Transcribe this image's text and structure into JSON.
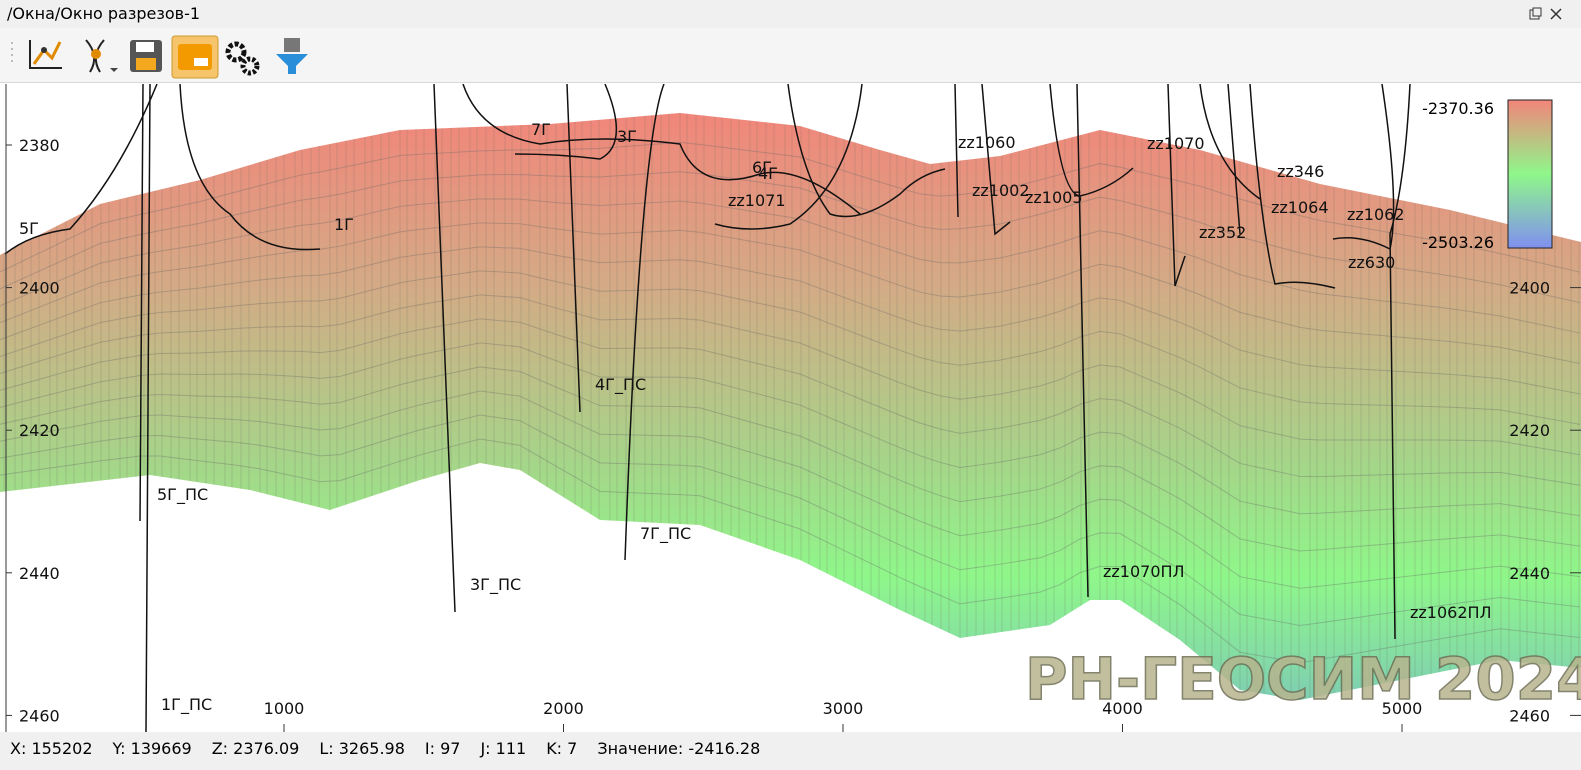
{
  "window": {
    "title": "/Окна/Окно разрезов-1"
  },
  "section": {
    "yticks_left": [
      2380,
      2400,
      2420,
      2440,
      2460
    ],
    "yticks_right": [
      2400,
      2420,
      2440,
      2460
    ],
    "xticks": [
      1000,
      2000,
      3000,
      4000,
      5000
    ],
    "colorbar": {
      "max_label": "-2370.36",
      "min_label": "-2503.26"
    },
    "wells": [
      "5Г",
      "1Г",
      "7Г",
      "3Г",
      "6Г",
      "4Г",
      "zz1071",
      "zz1060",
      "zz1002",
      "zz1005",
      "zz1070",
      "zz346",
      "zz1064",
      "zz352",
      "zz1062",
      "zz630",
      "5Г_ПС",
      "4Г_ПС",
      "7Г_ПС",
      "3Г_ПС",
      "1Г_ПС",
      "zz1070ПЛ",
      "zz1062ПЛ"
    ],
    "watermark": "РН-ГЕОСИМ 2024"
  },
  "status": {
    "items": [
      "X: 155202",
      "Y: 139669",
      "Z: 2376.09",
      "L: 3265.98",
      "I: 97",
      "J: 111",
      "K: 7",
      "Значение: -2416.28"
    ]
  }
}
